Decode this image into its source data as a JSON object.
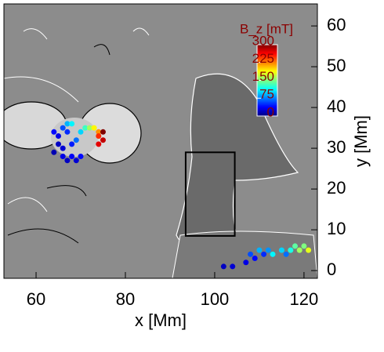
{
  "chart_data": {
    "type": "scatter",
    "x_label": "x [Mm]",
    "y_label": "y [Mm]",
    "colorbar_label": "B_z [mT]",
    "xlim": [
      52.8,
      123
    ],
    "ylim": [
      -1.9,
      65.4
    ],
    "xticks": [
      60,
      80,
      100,
      120
    ],
    "yticks": [
      0,
      10,
      20,
      30,
      40,
      50,
      60
    ],
    "clim": [
      0,
      300
    ],
    "cticks": [
      0,
      75,
      150,
      225,
      300
    ],
    "colormap": "jet",
    "box": {
      "x": [
        93.5,
        104.5
      ],
      "y": [
        8.5,
        29
      ]
    },
    "x": [
      64,
      65,
      66,
      67,
      65,
      66,
      64,
      66,
      67,
      68,
      69,
      70,
      68,
      69,
      70,
      71,
      72,
      73,
      74,
      74,
      75,
      75,
      74,
      67,
      68,
      107,
      108,
      109,
      111,
      112,
      113,
      115,
      116,
      117,
      118,
      119,
      120,
      121,
      110,
      102,
      104
    ],
    "y": [
      34,
      33,
      35,
      34,
      31,
      30,
      29,
      28,
      27,
      28,
      27,
      28,
      31,
      32,
      34,
      35,
      35,
      35,
      34,
      33,
      32,
      34,
      31,
      36,
      36,
      2,
      4,
      3,
      4,
      5,
      4,
      5,
      4,
      5,
      6,
      5,
      6,
      5,
      5,
      1,
      1
    ],
    "c": [
      40,
      30,
      60,
      50,
      20,
      25,
      15,
      30,
      20,
      35,
      25,
      40,
      45,
      70,
      100,
      130,
      160,
      190,
      220,
      250,
      280,
      300,
      270,
      90,
      110,
      30,
      60,
      40,
      50,
      80,
      110,
      100,
      70,
      120,
      140,
      160,
      150,
      180,
      90,
      20,
      25
    ]
  }
}
